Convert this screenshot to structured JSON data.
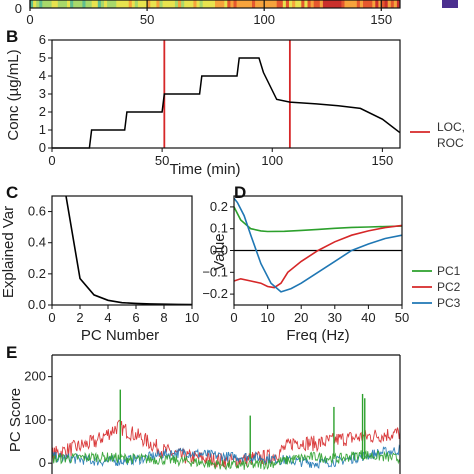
{
  "colors": {
    "event": "#d62728",
    "pc1": "#2ca02c",
    "pc2": "#d62728",
    "pc3": "#1f77b4",
    "axis": "#111111",
    "heatmap_colorbar_end": "#4b2f8f"
  },
  "chart_data": [
    {
      "panel": "A",
      "type": "heatmap",
      "visible_y_ticks": [
        "0"
      ],
      "x_ticks": [
        0,
        50,
        100,
        150
      ],
      "xlim": [
        0,
        158
      ],
      "note_colormap": "spectral (blue-green-yellow-red)"
    },
    {
      "panel": "B",
      "type": "line",
      "label": "B",
      "xlabel": "Time (min)",
      "ylabel": "Conc (µg/mL)",
      "xlim": [
        0,
        158
      ],
      "ylim": [
        0,
        6
      ],
      "x_ticks": [
        0,
        50,
        100,
        150
      ],
      "y_ticks": [
        0,
        1,
        2,
        3,
        4,
        5,
        6
      ],
      "series": [
        {
          "x": [
            0,
            17,
            18,
            33,
            34,
            50,
            51,
            67,
            68,
            84,
            85,
            94,
            96,
            102,
            108,
            120,
            130,
            140,
            150,
            158
          ],
          "y": [
            0,
            0,
            1,
            1,
            2,
            2,
            3,
            3,
            4,
            4,
            5,
            5,
            4.2,
            2.7,
            2.55,
            2.45,
            2.35,
            2.2,
            1.6,
            0.85
          ]
        }
      ],
      "vlines": [
        51,
        108
      ],
      "legend": {
        "entries": [
          "LOC,",
          "ROC"
        ],
        "placement": "right"
      }
    },
    {
      "panel": "C",
      "type": "line",
      "label": "C",
      "xlabel": "PC Number",
      "ylabel": "Explained Var",
      "xlim": [
        0,
        10
      ],
      "ylim": [
        0,
        0.7
      ],
      "x_ticks": [
        0,
        2,
        4,
        6,
        8,
        10
      ],
      "y_ticks": [
        "0.0",
        "0.2",
        "0.4",
        "0.6"
      ],
      "series": [
        {
          "x": [
            1,
            2,
            3,
            4,
            5,
            6,
            7,
            8,
            9,
            10
          ],
          "y": [
            0.7,
            0.17,
            0.065,
            0.03,
            0.015,
            0.01,
            0.007,
            0.005,
            0.004,
            0.003
          ]
        }
      ]
    },
    {
      "panel": "D",
      "type": "line",
      "label": "D",
      "xlabel": "Freq (Hz)",
      "ylabel": "Value",
      "xlim": [
        0,
        50
      ],
      "ylim": [
        -0.25,
        0.25
      ],
      "x_ticks": [
        0,
        10,
        20,
        30,
        40,
        50
      ],
      "y_ticks": [
        "−0.2",
        "−0.1",
        "0.0",
        "0.1",
        "0.2"
      ],
      "series": [
        {
          "name": "PC1",
          "x": [
            0,
            2,
            5,
            8,
            10,
            15,
            20,
            25,
            30,
            35,
            40,
            45,
            50
          ],
          "y": [
            0.2,
            0.14,
            0.1,
            0.09,
            0.087,
            0.088,
            0.092,
            0.097,
            0.102,
            0.106,
            0.108,
            0.11,
            0.112
          ]
        },
        {
          "name": "PC2",
          "x": [
            0,
            2,
            5,
            8,
            10,
            12,
            14,
            16,
            20,
            25,
            30,
            35,
            40,
            45,
            50
          ],
          "y": [
            -0.14,
            -0.13,
            -0.14,
            -0.15,
            -0.165,
            -0.17,
            -0.15,
            -0.1,
            -0.05,
            0.0,
            0.04,
            0.07,
            0.09,
            0.105,
            0.115
          ]
        },
        {
          "name": "PC3",
          "x": [
            0,
            1,
            3,
            5,
            8,
            11,
            14,
            17,
            20,
            25,
            30,
            35,
            40,
            45,
            50
          ],
          "y": [
            0.24,
            0.22,
            0.16,
            0.07,
            -0.06,
            -0.15,
            -0.19,
            -0.175,
            -0.15,
            -0.1,
            -0.05,
            0.0,
            0.03,
            0.055,
            0.07
          ]
        }
      ],
      "hline": 0,
      "legend": {
        "entries": [
          "PC1",
          "PC2",
          "PC3"
        ],
        "placement": "right"
      }
    },
    {
      "panel": "E",
      "type": "line",
      "label": "E",
      "ylabel": "PC Score",
      "xlim": [
        0,
        158
      ],
      "ylim": [
        -25,
        250
      ],
      "y_ticks": [
        0,
        100,
        200
      ],
      "series": [
        {
          "name": "PC1",
          "x": [
            0,
            10,
            20,
            30,
            40,
            50,
            60,
            70,
            80,
            90,
            100,
            110,
            120,
            130,
            140,
            150,
            158
          ],
          "y": [
            10,
            12,
            15,
            12,
            10,
            8,
            5,
            0,
            -5,
            -5,
            0,
            10,
            15,
            10,
            20,
            15,
            10
          ]
        },
        {
          "name": "PC2",
          "x": [
            0,
            10,
            20,
            30,
            40,
            50,
            60,
            70,
            80,
            90,
            100,
            110,
            120,
            130,
            140,
            150,
            158
          ],
          "y": [
            20,
            35,
            50,
            85,
            60,
            30,
            15,
            10,
            5,
            10,
            15,
            50,
            45,
            55,
            60,
            65,
            70
          ]
        },
        {
          "name": "PC3",
          "x": [
            0,
            10,
            20,
            30,
            40,
            50,
            60,
            70,
            80,
            90,
            100,
            110,
            120,
            130,
            140,
            150,
            158
          ],
          "y": [
            15,
            10,
            5,
            5,
            10,
            20,
            25,
            20,
            15,
            15,
            10,
            5,
            0,
            5,
            15,
            25,
            30
          ]
        }
      ],
      "spikes": [
        {
          "x": 31,
          "y": 170
        },
        {
          "x": 90,
          "y": 110
        },
        {
          "x": 128,
          "y": 130
        },
        {
          "x": 141,
          "y": 160
        },
        {
          "x": 142,
          "y": 150
        }
      ]
    }
  ]
}
